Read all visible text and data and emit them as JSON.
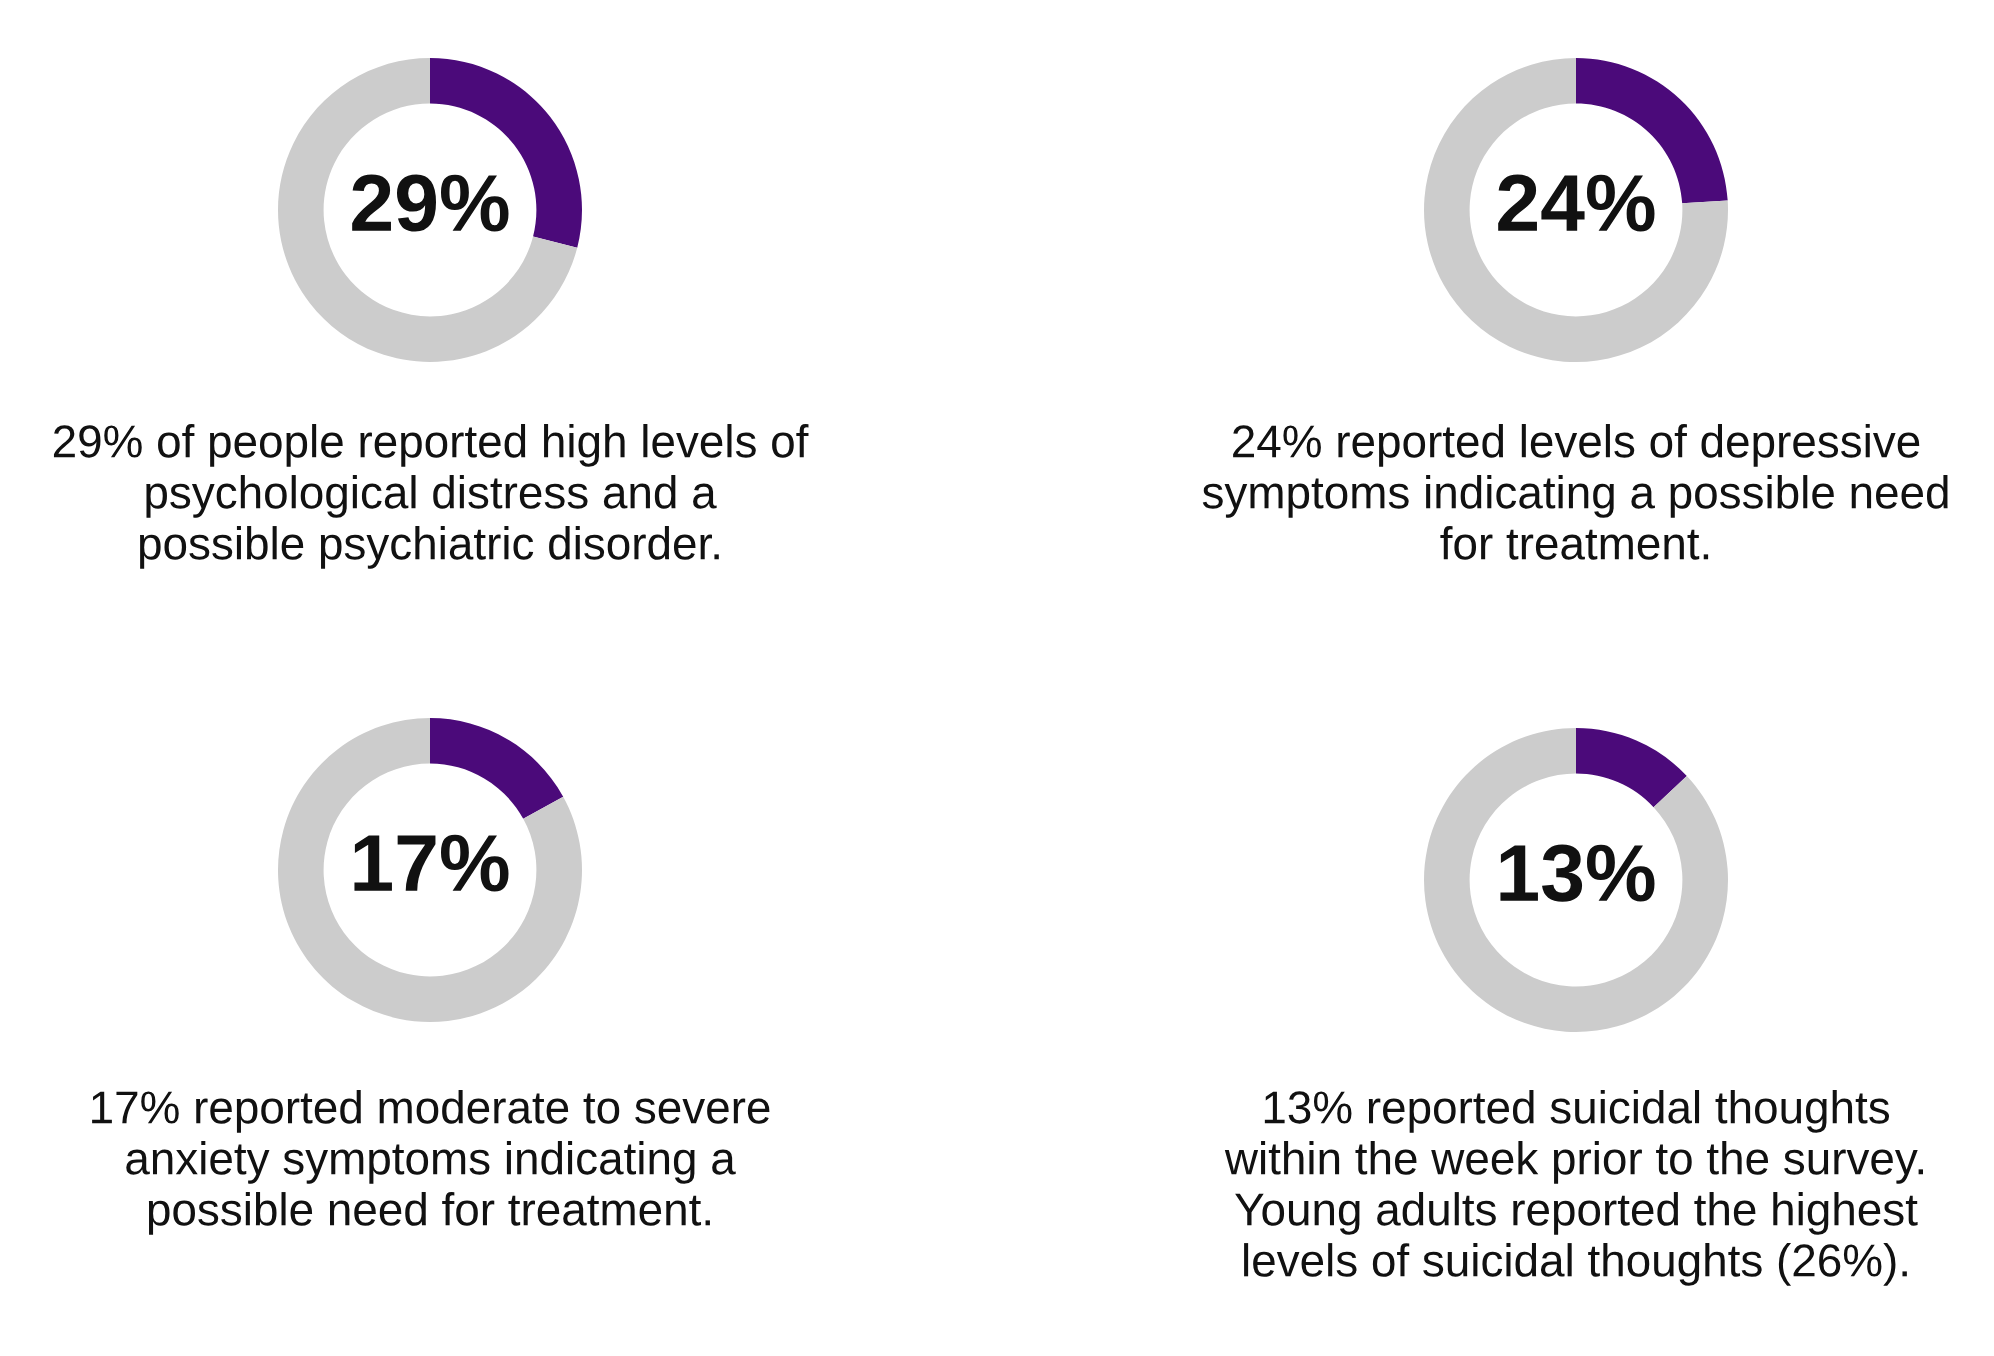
{
  "chart_data": [
    {
      "type": "donut",
      "categories": [
        null,
        null
      ],
      "values": [
        29,
        71
      ],
      "colors": [
        "#4b0a7a",
        "#cccccc"
      ],
      "value_labels": [
        "29%",
        null
      ],
      "annotations": [
        "29% of people reported high levels of\npsychological distress and a\npossible psychiatric disorder."
      ]
    },
    {
      "type": "donut",
      "categories": [
        null,
        null
      ],
      "values": [
        24,
        76
      ],
      "colors": [
        "#4b0a7a",
        "#cccccc"
      ],
      "value_labels": [
        "24%",
        null
      ],
      "annotations": [
        "24% reported levels of depressive\nsymptoms indicating a possible need\nfor treatment."
      ]
    },
    {
      "type": "donut",
      "categories": [
        null,
        null
      ],
      "values": [
        17,
        83
      ],
      "colors": [
        "#4b0a7a",
        "#cccccc"
      ],
      "value_labels": [
        "17%",
        null
      ],
      "annotations": [
        "17% reported moderate to severe\nanxiety symptoms indicating a\npossible need for treatment."
      ]
    },
    {
      "type": "donut",
      "categories": [
        null,
        null
      ],
      "values": [
        13,
        87
      ],
      "colors": [
        "#4b0a7a",
        "#cccccc"
      ],
      "value_labels": [
        "13%",
        null
      ],
      "annotations": [
        "13% reported suicidal thoughts\nwithin the week prior to the survey.\nYoung adults reported the highest\nlevels of suicidal thoughts (26%)."
      ]
    }
  ]
}
